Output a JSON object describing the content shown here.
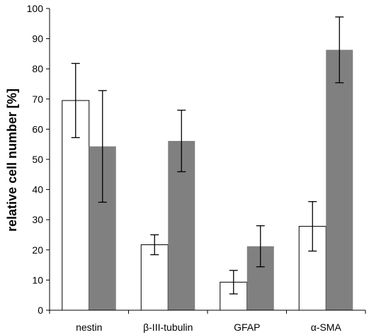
{
  "chart_data": {
    "type": "bar",
    "title": "",
    "xlabel": "",
    "ylabel": "relative cell number [%]",
    "ylim": [
      0,
      100
    ],
    "yticks": [
      0,
      10,
      20,
      30,
      40,
      50,
      60,
      70,
      80,
      90,
      100
    ],
    "grid": false,
    "legend": "none",
    "categories": [
      "nestin",
      "β-III-tubulin",
      "GFAP",
      "α-SMA"
    ],
    "series": [
      {
        "color": "#ffffff",
        "values": [
          69.5,
          21.7,
          9.3,
          27.8
        ],
        "error": [
          12.3,
          3.3,
          3.9,
          8.2
        ]
      },
      {
        "color": "#808080",
        "values": [
          54.3,
          56.1,
          21.2,
          86.3
        ],
        "error": [
          18.5,
          10.2,
          6.8,
          10.9
        ]
      }
    ]
  }
}
